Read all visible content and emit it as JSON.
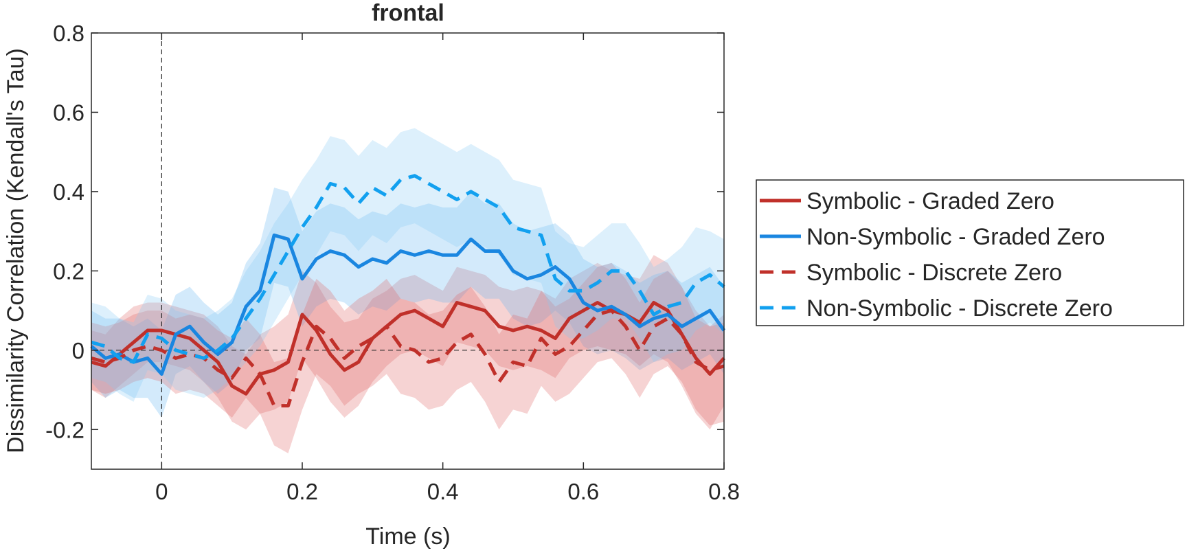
{
  "chart_data": {
    "type": "line",
    "title": "frontal",
    "xlabel": "Time (s)",
    "ylabel": "Dissimilarity Correlation (Kendall's Tau)",
    "xlim": [
      -0.1,
      0.8
    ],
    "ylim": [
      -0.3,
      0.8
    ],
    "xticks": [
      0,
      0.2,
      0.4,
      0.6,
      0.8
    ],
    "xtick_labels": [
      "0",
      "0.2",
      "0.4",
      "0.6",
      "0.8"
    ],
    "yticks": [
      -0.2,
      0,
      0.2,
      0.4,
      0.6,
      0.8
    ],
    "ytick_labels": [
      "-0.2",
      "0",
      "0.2",
      "0.4",
      "0.6",
      "0.8"
    ],
    "grid": false,
    "legend_position": "outside-right",
    "reference_lines": [
      {
        "axis": "x",
        "value": 0,
        "style": "dashed"
      },
      {
        "axis": "y",
        "value": 0,
        "style": "dashed"
      }
    ],
    "x": [
      -0.1,
      -0.08,
      -0.06,
      -0.04,
      -0.02,
      0,
      0.02,
      0.04,
      0.06,
      0.08,
      0.1,
      0.12,
      0.14,
      0.16,
      0.18,
      0.2,
      0.22,
      0.24,
      0.26,
      0.28,
      0.3,
      0.32,
      0.34,
      0.36,
      0.38,
      0.4,
      0.42,
      0.44,
      0.46,
      0.48,
      0.5,
      0.52,
      0.54,
      0.56,
      0.58,
      0.6,
      0.62,
      0.64,
      0.66,
      0.68,
      0.7,
      0.72,
      0.74,
      0.76,
      0.78,
      0.8
    ],
    "series": [
      {
        "name": "Symbolic - Graded Zero",
        "color": "#c0302a",
        "band_color": "#e06060",
        "dash": "solid",
        "values": [
          -0.03,
          -0.04,
          -0.01,
          0.02,
          0.05,
          0.05,
          0.04,
          0.03,
          0.0,
          -0.03,
          -0.09,
          -0.11,
          -0.06,
          -0.05,
          -0.03,
          0.09,
          0.05,
          -0.01,
          -0.05,
          -0.03,
          0.03,
          0.06,
          0.09,
          0.1,
          0.08,
          0.06,
          0.12,
          0.11,
          0.1,
          0.06,
          0.05,
          0.06,
          0.05,
          0.03,
          0.08,
          0.1,
          0.12,
          0.1,
          0.09,
          0.07,
          0.12,
          0.1,
          0.04,
          -0.02,
          -0.06,
          -0.02
        ],
        "upper": [
          0.05,
          0.04,
          0.08,
          0.11,
          0.12,
          0.12,
          0.11,
          0.1,
          0.09,
          0.06,
          0.01,
          -0.01,
          0.04,
          0.06,
          0.09,
          0.2,
          0.17,
          0.11,
          0.07,
          0.08,
          0.13,
          0.15,
          0.18,
          0.19,
          0.17,
          0.15,
          0.21,
          0.2,
          0.19,
          0.16,
          0.15,
          0.16,
          0.15,
          0.13,
          0.18,
          0.2,
          0.22,
          0.2,
          0.19,
          0.18,
          0.24,
          0.22,
          0.16,
          0.1,
          0.06,
          0.09
        ],
        "lower": [
          -0.1,
          -0.12,
          -0.09,
          -0.06,
          -0.03,
          -0.03,
          -0.04,
          -0.05,
          -0.08,
          -0.12,
          -0.18,
          -0.2,
          -0.16,
          -0.15,
          -0.13,
          -0.02,
          -0.07,
          -0.13,
          -0.17,
          -0.14,
          -0.08,
          -0.04,
          -0.01,
          0.0,
          -0.02,
          -0.04,
          0.02,
          0.01,
          0.0,
          -0.04,
          -0.05,
          -0.04,
          -0.05,
          -0.07,
          -0.02,
          0.0,
          0.01,
          0.0,
          -0.01,
          -0.04,
          -0.01,
          -0.03,
          -0.09,
          -0.16,
          -0.2,
          -0.14
        ]
      },
      {
        "name": "Non-Symbolic - Graded Zero",
        "color": "#1a86e0",
        "band_color": "#62b2f2",
        "dash": "solid",
        "values": [
          0.01,
          -0.02,
          -0.01,
          -0.03,
          -0.02,
          -0.06,
          0.04,
          0.06,
          0.02,
          -0.01,
          0.02,
          0.11,
          0.15,
          0.29,
          0.28,
          0.18,
          0.23,
          0.25,
          0.24,
          0.21,
          0.23,
          0.22,
          0.25,
          0.24,
          0.25,
          0.24,
          0.24,
          0.28,
          0.25,
          0.25,
          0.2,
          0.18,
          0.19,
          0.21,
          0.18,
          0.12,
          0.1,
          0.11,
          0.09,
          0.06,
          0.08,
          0.09,
          0.06,
          0.08,
          0.1,
          0.05
        ],
        "upper": [
          0.1,
          0.08,
          0.08,
          0.06,
          0.08,
          0.05,
          0.14,
          0.16,
          0.12,
          0.09,
          0.12,
          0.22,
          0.27,
          0.41,
          0.4,
          0.3,
          0.35,
          0.37,
          0.36,
          0.33,
          0.35,
          0.34,
          0.37,
          0.36,
          0.37,
          0.36,
          0.36,
          0.4,
          0.37,
          0.37,
          0.32,
          0.3,
          0.31,
          0.32,
          0.29,
          0.23,
          0.21,
          0.22,
          0.2,
          0.17,
          0.19,
          0.2,
          0.17,
          0.19,
          0.21,
          0.16
        ],
        "lower": [
          -0.08,
          -0.12,
          -0.1,
          -0.12,
          -0.12,
          -0.17,
          -0.06,
          -0.04,
          -0.08,
          -0.11,
          -0.08,
          0.0,
          0.03,
          0.17,
          0.16,
          0.06,
          0.11,
          0.13,
          0.12,
          0.09,
          0.11,
          0.1,
          0.13,
          0.12,
          0.13,
          0.12,
          0.12,
          0.16,
          0.13,
          0.13,
          0.08,
          0.06,
          0.07,
          0.1,
          0.07,
          0.01,
          -0.01,
          0.0,
          -0.02,
          -0.05,
          -0.03,
          -0.02,
          -0.05,
          -0.03,
          -0.01,
          -0.06
        ]
      },
      {
        "name": "Symbolic - Discrete Zero",
        "color": "#c0302a",
        "band_color": "#e06060",
        "dash": "dashed",
        "values": [
          -0.02,
          -0.03,
          -0.02,
          0.0,
          0.01,
          0.0,
          -0.02,
          -0.01,
          -0.02,
          -0.05,
          -0.07,
          -0.02,
          -0.06,
          -0.14,
          -0.14,
          -0.03,
          0.06,
          0.03,
          -0.02,
          0.01,
          0.03,
          0.06,
          0.01,
          0.0,
          -0.03,
          -0.02,
          0.02,
          0.04,
          -0.01,
          -0.08,
          -0.03,
          -0.04,
          0.03,
          -0.01,
          0.01,
          0.05,
          0.09,
          0.1,
          0.06,
          0.0,
          0.06,
          0.08,
          0.04,
          -0.03,
          -0.05,
          -0.04
        ],
        "upper": [
          0.07,
          0.06,
          0.07,
          0.09,
          0.1,
          0.1,
          0.08,
          0.09,
          0.08,
          0.05,
          0.03,
          0.08,
          0.04,
          -0.03,
          -0.02,
          0.09,
          0.18,
          0.15,
          0.1,
          0.13,
          0.15,
          0.18,
          0.13,
          0.12,
          0.09,
          0.1,
          0.14,
          0.16,
          0.11,
          0.04,
          0.09,
          0.08,
          0.15,
          0.11,
          0.13,
          0.17,
          0.21,
          0.22,
          0.18,
          0.12,
          0.18,
          0.2,
          0.16,
          0.08,
          0.06,
          0.07
        ],
        "lower": [
          -0.1,
          -0.11,
          -0.1,
          -0.08,
          -0.07,
          -0.08,
          -0.11,
          -0.1,
          -0.11,
          -0.14,
          -0.17,
          -0.12,
          -0.16,
          -0.24,
          -0.26,
          -0.15,
          -0.06,
          -0.09,
          -0.14,
          -0.11,
          -0.09,
          -0.06,
          -0.11,
          -0.12,
          -0.15,
          -0.14,
          -0.1,
          -0.08,
          -0.13,
          -0.2,
          -0.15,
          -0.16,
          -0.09,
          -0.13,
          -0.11,
          -0.07,
          -0.03,
          -0.02,
          -0.06,
          -0.12,
          -0.06,
          -0.04,
          -0.08,
          -0.15,
          -0.19,
          -0.18
        ]
      },
      {
        "name": "Non-Symbolic - Discrete Zero",
        "color": "#12a0ef",
        "band_color": "#85c8f5",
        "dash": "dashed",
        "values": [
          0.02,
          0.01,
          -0.02,
          -0.03,
          0.04,
          0.03,
          0.0,
          -0.01,
          -0.02,
          0.0,
          0.03,
          0.08,
          0.13,
          0.19,
          0.25,
          0.31,
          0.36,
          0.42,
          0.41,
          0.37,
          0.41,
          0.39,
          0.43,
          0.44,
          0.42,
          0.4,
          0.38,
          0.4,
          0.38,
          0.36,
          0.31,
          0.3,
          0.29,
          0.18,
          0.15,
          0.15,
          0.17,
          0.2,
          0.2,
          0.15,
          0.09,
          0.11,
          0.12,
          0.17,
          0.19,
          0.16
        ],
        "upper": [
          0.12,
          0.11,
          0.08,
          0.07,
          0.14,
          0.13,
          0.1,
          0.09,
          0.08,
          0.1,
          0.13,
          0.2,
          0.25,
          0.32,
          0.37,
          0.43,
          0.48,
          0.54,
          0.53,
          0.49,
          0.53,
          0.51,
          0.55,
          0.56,
          0.54,
          0.52,
          0.5,
          0.52,
          0.5,
          0.48,
          0.43,
          0.42,
          0.41,
          0.3,
          0.27,
          0.26,
          0.29,
          0.32,
          0.32,
          0.27,
          0.21,
          0.23,
          0.26,
          0.31,
          0.3,
          0.28
        ],
        "lower": [
          -0.07,
          -0.08,
          -0.11,
          -0.13,
          -0.05,
          -0.06,
          -0.1,
          -0.11,
          -0.12,
          -0.1,
          -0.07,
          -0.03,
          0.01,
          0.07,
          0.13,
          0.19,
          0.24,
          0.3,
          0.29,
          0.25,
          0.29,
          0.27,
          0.31,
          0.32,
          0.3,
          0.28,
          0.26,
          0.28,
          0.26,
          0.24,
          0.19,
          0.18,
          0.17,
          0.06,
          0.03,
          0.03,
          0.05,
          0.08,
          0.08,
          0.03,
          -0.03,
          -0.01,
          0.0,
          0.05,
          0.07,
          0.04
        ]
      }
    ]
  }
}
